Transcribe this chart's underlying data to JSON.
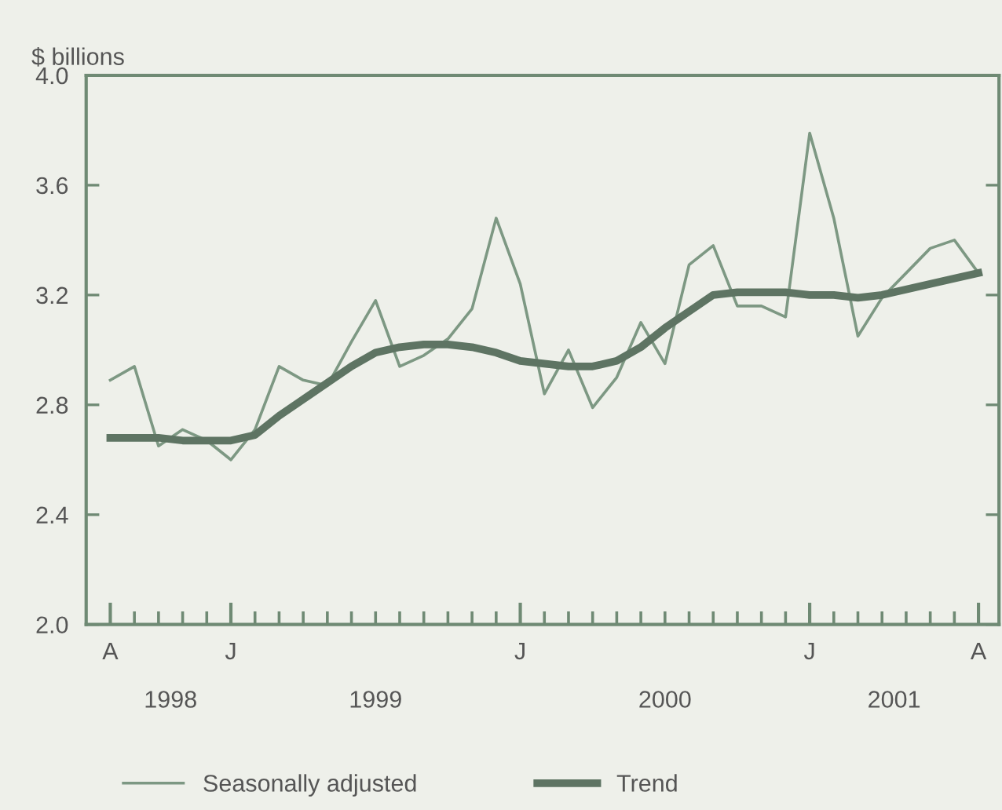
{
  "chart_data": {
    "type": "line",
    "ylabel": "$ billions",
    "categories": [
      "A",
      null,
      null,
      null,
      null,
      "J",
      null,
      null,
      null,
      null,
      null,
      null,
      null,
      null,
      null,
      null,
      null,
      "J",
      null,
      null,
      null,
      null,
      null,
      null,
      null,
      null,
      null,
      null,
      null,
      "J",
      null,
      null,
      null,
      null,
      null,
      null,
      "A"
    ],
    "series": [
      {
        "name": "Seasonally adjusted",
        "color": "#7d9883",
        "values": [
          2.89,
          2.94,
          2.65,
          2.71,
          2.67,
          2.6,
          2.71,
          2.94,
          2.89,
          2.87,
          3.03,
          3.18,
          2.94,
          2.98,
          3.04,
          3.15,
          3.48,
          3.24,
          2.84,
          3.0,
          2.79,
          2.9,
          3.1,
          2.95,
          3.31,
          3.38,
          3.16,
          3.16,
          3.12,
          3.79,
          3.48,
          3.05,
          3.19,
          3.28,
          3.37,
          3.4,
          3.28
        ]
      },
      {
        "name": "Trend",
        "color": "#5e7463",
        "values": [
          2.68,
          2.68,
          2.68,
          2.67,
          2.67,
          2.67,
          2.69,
          2.76,
          2.82,
          2.88,
          2.94,
          2.99,
          3.01,
          3.02,
          3.02,
          3.01,
          2.99,
          2.96,
          2.95,
          2.94,
          2.94,
          2.96,
          3.01,
          3.08,
          3.14,
          3.2,
          3.21,
          3.21,
          3.21,
          3.2,
          3.2,
          3.19,
          3.2,
          3.22,
          3.24,
          3.26,
          3.28
        ]
      }
    ],
    "ylim": [
      2.0,
      4.0
    ],
    "yticks": [
      {
        "value": 2.0,
        "label": "2.0"
      },
      {
        "value": 2.4,
        "label": "2.4"
      },
      {
        "value": 2.8,
        "label": "2.8"
      },
      {
        "value": 3.2,
        "label": "3.2"
      },
      {
        "value": 3.6,
        "label": "3.6"
      },
      {
        "value": 4.0,
        "label": "4.0"
      }
    ],
    "annotations": [
      "1998",
      "1999",
      "2000",
      "2001"
    ],
    "grid": false,
    "legend": "bottom",
    "marker": "none",
    "line_style": "solid"
  }
}
